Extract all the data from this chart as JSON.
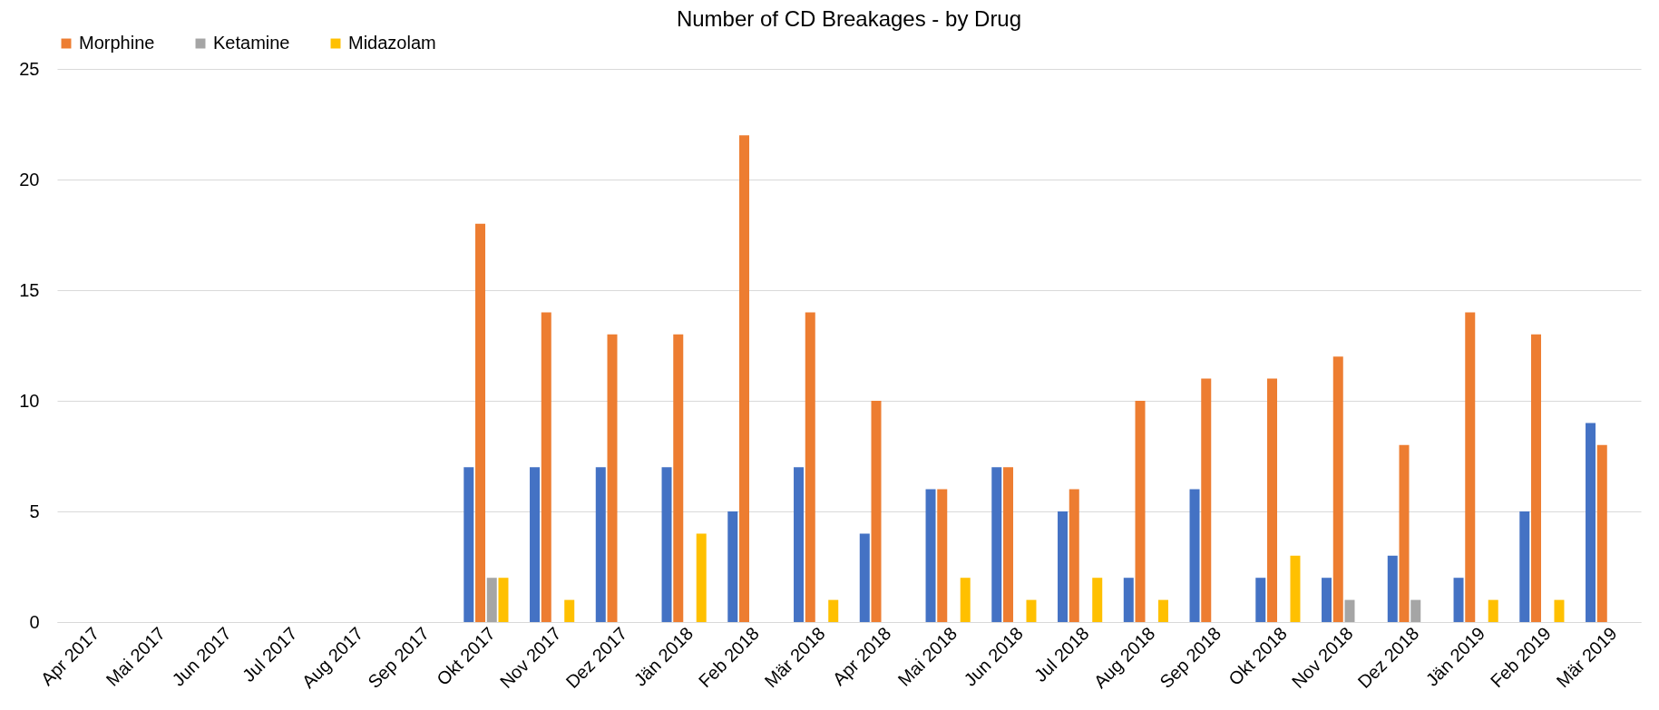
{
  "chart_data": {
    "type": "bar",
    "title": "Number of CD Breakages - by Drug",
    "categories": [
      "Apr 2017",
      "Mai 2017",
      "Jun 2017",
      "Jul 2017",
      "Aug 2017",
      "Sep 2017",
      "Okt 2017",
      "Nov 2017",
      "Dez 2017",
      "Jän 2018",
      "Feb 2018",
      "Mär 2018",
      "Apr 2018",
      "Mai 2018",
      "Jun 2018",
      "Jul 2018",
      "Aug 2018",
      "Sep 2018",
      "Okt 2018",
      "Nov 2018",
      "Dez 2018",
      "Jän 2019",
      "Feb 2019",
      "Mär 2019"
    ],
    "series": [
      {
        "color": "#4472c4",
        "values": [
          0,
          0,
          0,
          0,
          0,
          0,
          7,
          7,
          7,
          7,
          5,
          7,
          4,
          6,
          7,
          5,
          2,
          6,
          2,
          2,
          3,
          2,
          5,
          9
        ]
      },
      {
        "name": "Morphine",
        "color": "#ed7d31",
        "values": [
          0,
          0,
          0,
          0,
          0,
          0,
          18,
          14,
          13,
          13,
          22,
          14,
          10,
          6,
          7,
          6,
          10,
          11,
          11,
          12,
          8,
          14,
          13,
          8
        ]
      },
      {
        "name": "Ketamine",
        "color": "#a5a5a5",
        "values": [
          0,
          0,
          0,
          0,
          0,
          0,
          2,
          0,
          0,
          0,
          0,
          0,
          0,
          0,
          0,
          0,
          0,
          0,
          0,
          1,
          1,
          0,
          0,
          0
        ]
      },
      {
        "name": "Midazolam",
        "color": "#ffc000",
        "values": [
          0,
          0,
          0,
          0,
          0,
          0,
          2,
          1,
          0,
          4,
          0,
          1,
          0,
          2,
          1,
          2,
          1,
          0,
          3,
          0,
          0,
          1,
          1,
          0
        ]
      }
    ],
    "ylim": [
      0,
      25
    ],
    "yticks": [
      0,
      5,
      10,
      15,
      20,
      25
    ],
    "grid": "y",
    "legend": "top"
  }
}
